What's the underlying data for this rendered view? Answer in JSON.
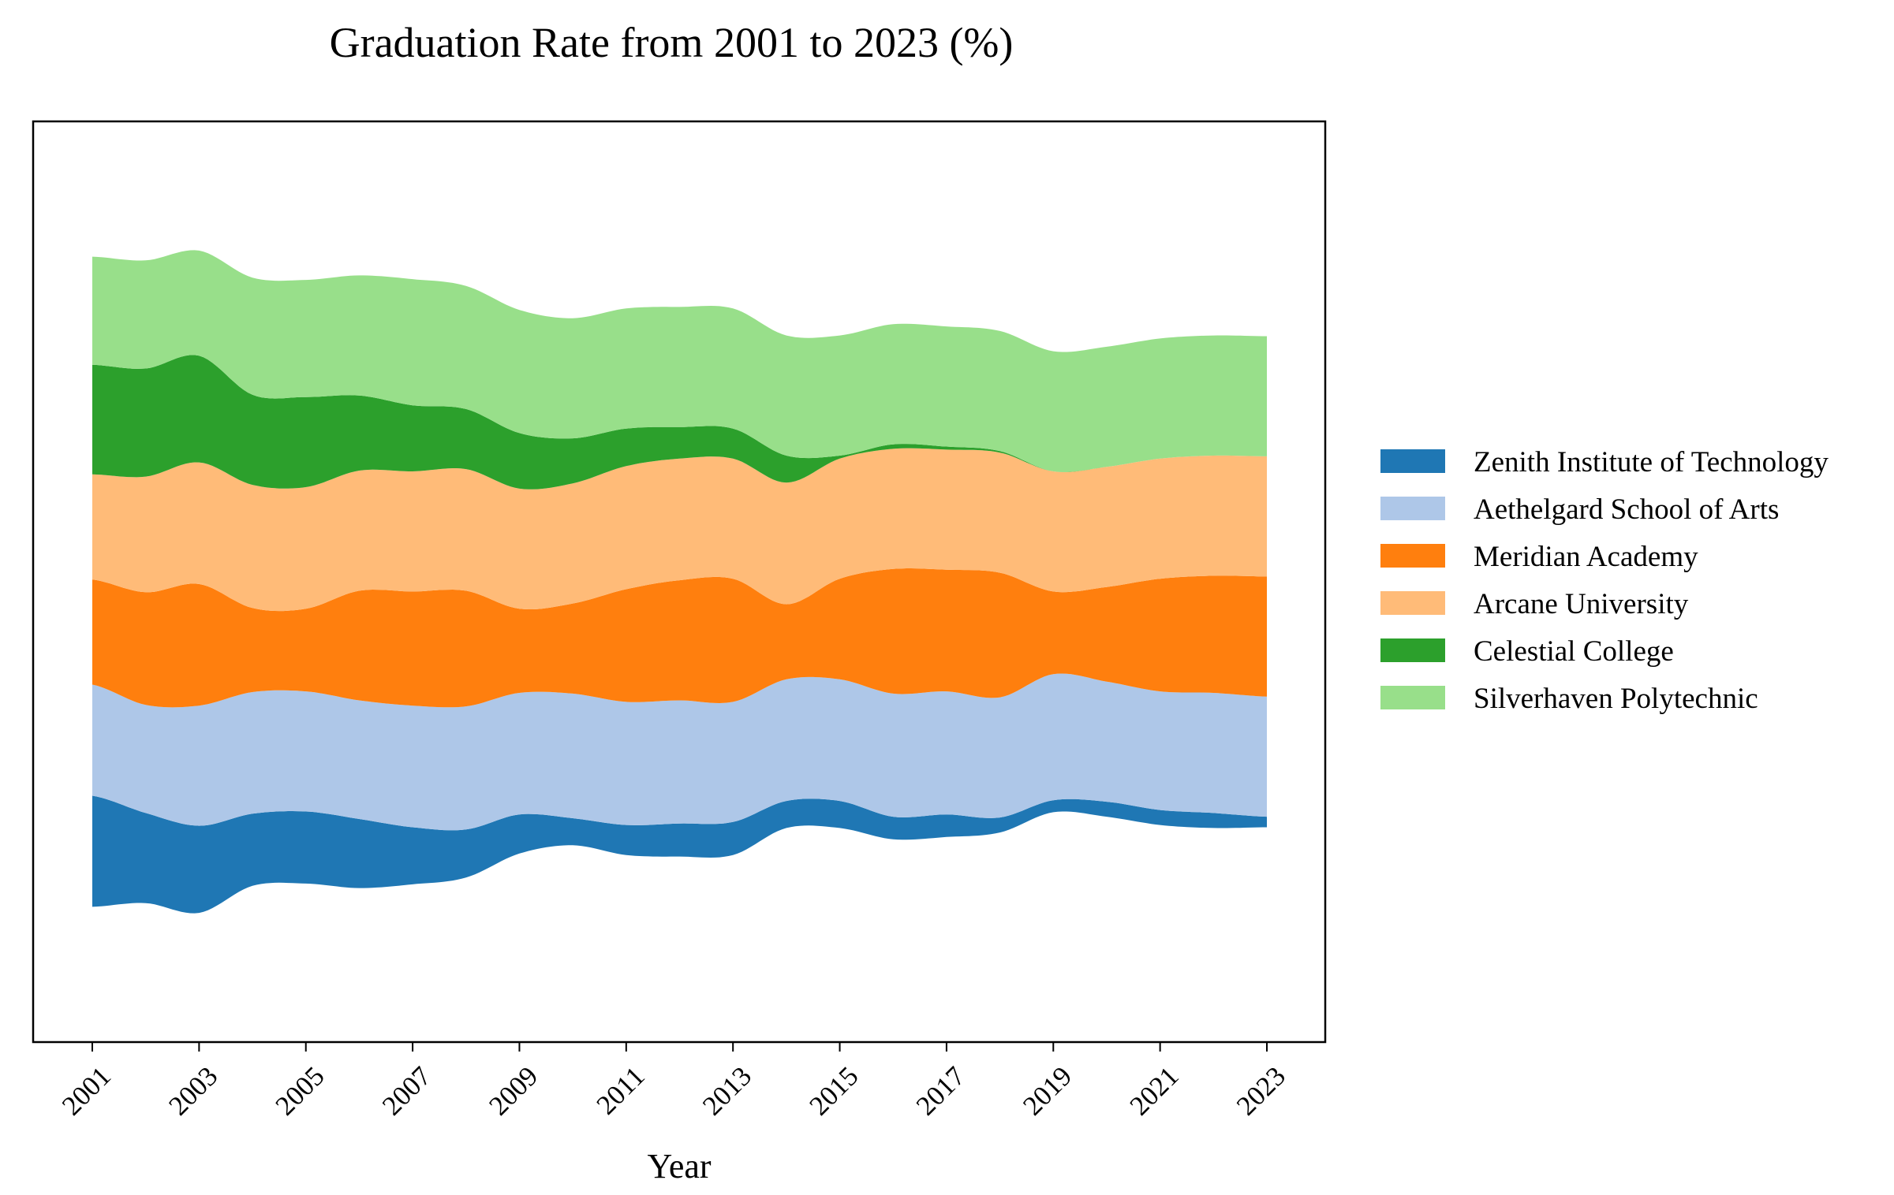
{
  "chart_data": {
    "type": "area",
    "subtype": "streamgraph",
    "title": "Graduation Rate from 2001 to 2023 (%)",
    "xlabel": "Year",
    "ylabel": "",
    "x": [
      2001,
      2002,
      2003,
      2004,
      2005,
      2006,
      2007,
      2008,
      2009,
      2010,
      2011,
      2012,
      2013,
      2014,
      2015,
      2016,
      2017,
      2018,
      2019,
      2020,
      2021,
      2022,
      2023
    ],
    "xticks": [
      "2001",
      "2003",
      "2005",
      "2007",
      "2009",
      "2011",
      "2013",
      "2015",
      "2017",
      "2019",
      "2021",
      "2023"
    ],
    "baseline": "symmetric",
    "y_axis_visible": false,
    "grid": false,
    "legend_position": "right",
    "series": [
      {
        "name": "Zenith Institute of Technology",
        "color": "#1f77b4",
        "values": [
          74,
          60,
          58,
          48,
          48,
          46,
          38,
          32,
          26,
          18,
          20,
          22,
          22,
          18,
          18,
          15,
          15,
          10,
          8,
          10,
          10,
          10,
          7
        ]
      },
      {
        "name": "Aethelgard School of Arts",
        "color": "#aec7e8",
        "values": [
          74,
          72,
          80,
          81,
          80,
          79,
          81,
          82,
          81,
          83,
          82,
          82,
          80,
          81,
          81,
          82,
          82,
          80,
          84,
          80,
          79,
          80,
          80
        ]
      },
      {
        "name": "Meridian Academy",
        "color": "#ff7f0e",
        "values": [
          70,
          75,
          81,
          56,
          55,
          73,
          76,
          77,
          56,
          60,
          75,
          80,
          82,
          50,
          67,
          83,
          81,
          83,
          55,
          63,
          75,
          78,
          80
        ]
      },
      {
        "name": "Arcane University",
        "color": "#ffbb78",
        "values": [
          70,
          77,
          81,
          82,
          81,
          80,
          80,
          81,
          80,
          80,
          82,
          81,
          80,
          81,
          80,
          80,
          80,
          80,
          80,
          80,
          80,
          80,
          80
        ]
      },
      {
        "name": "Celestial College",
        "color": "#2ca02c",
        "values": [
          73,
          72,
          71,
          60,
          60,
          50,
          44,
          40,
          37,
          30,
          25,
          21,
          20,
          18,
          2,
          3,
          2,
          1,
          0,
          0,
          0,
          0,
          0
        ]
      },
      {
        "name": "Silverhaven Polytechnic",
        "color": "#98df8a",
        "values": [
          72,
          72,
          70,
          78,
          78,
          80,
          84,
          82,
          82,
          80,
          80,
          80,
          80,
          80,
          80,
          80,
          80,
          80,
          80,
          80,
          80,
          80,
          80
        ]
      }
    ]
  }
}
